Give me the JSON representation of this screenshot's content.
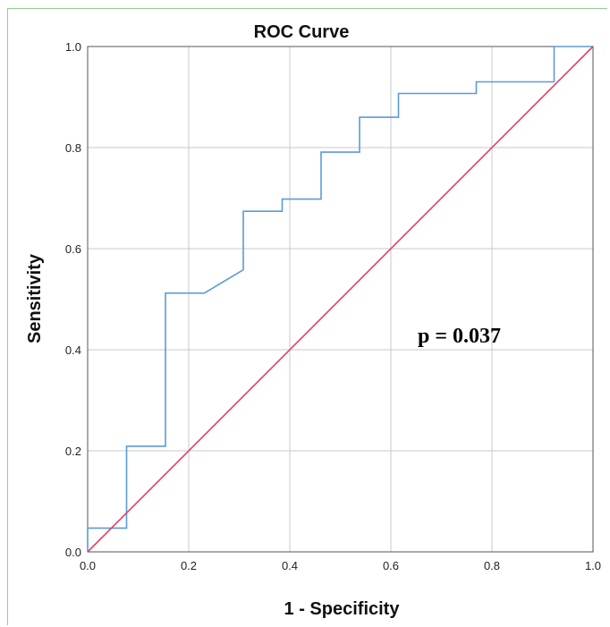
{
  "chart_data": {
    "type": "line",
    "title": "ROC Curve",
    "xlabel": "1 - Specificity",
    "ylabel": "Sensitivity",
    "xlim": [
      0.0,
      1.0
    ],
    "ylim": [
      0.0,
      1.0
    ],
    "xticks": [
      "0.0",
      "0.2",
      "0.4",
      "0.6",
      "0.8",
      "1.0"
    ],
    "yticks": [
      "0.0",
      "0.2",
      "0.4",
      "0.6",
      "0.8",
      "1.0"
    ],
    "grid": true,
    "annotation": "p = 0.037",
    "series": [
      {
        "color": "#5b9bd5",
        "points": [
          [
            0.0,
            0.0
          ],
          [
            0.0,
            0.047
          ],
          [
            0.077,
            0.047
          ],
          [
            0.077,
            0.209
          ],
          [
            0.154,
            0.209
          ],
          [
            0.154,
            0.512
          ],
          [
            0.231,
            0.512
          ],
          [
            0.308,
            0.558
          ],
          [
            0.308,
            0.674
          ],
          [
            0.385,
            0.674
          ],
          [
            0.385,
            0.698
          ],
          [
            0.462,
            0.698
          ],
          [
            0.462,
            0.791
          ],
          [
            0.538,
            0.791
          ],
          [
            0.538,
            0.86
          ],
          [
            0.615,
            0.86
          ],
          [
            0.615,
            0.907
          ],
          [
            0.769,
            0.907
          ],
          [
            0.769,
            0.93
          ],
          [
            0.923,
            0.93
          ],
          [
            0.923,
            1.0
          ],
          [
            1.0,
            1.0
          ]
        ]
      },
      {
        "color": "#e0406a",
        "points": [
          [
            0.0,
            0.0
          ],
          [
            1.0,
            1.0
          ]
        ]
      }
    ]
  }
}
